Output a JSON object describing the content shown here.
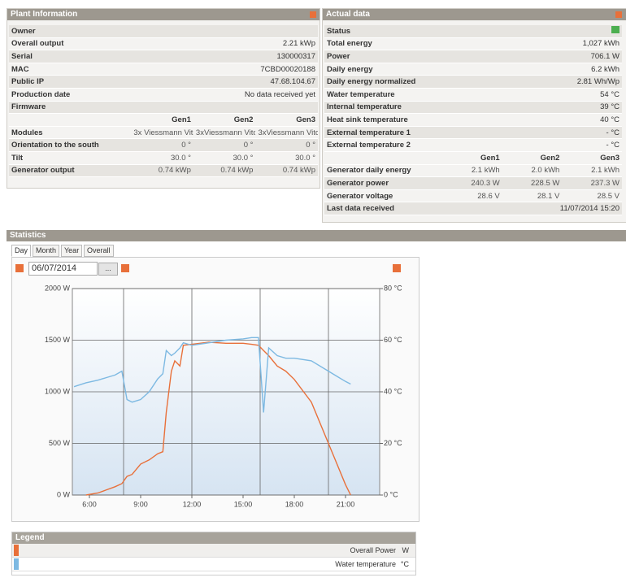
{
  "plant_info": {
    "title": "Plant Information",
    "rows": [
      [
        "Owner"
      ],
      [
        "Overall output",
        "2.21 kWp"
      ],
      [
        "Serial",
        "130000317"
      ],
      [
        "MAC",
        "7CBD00020188"
      ],
      [
        "Public IP",
        "47.68.104.67"
      ],
      [
        "Production date",
        "No data received yet"
      ],
      [
        "Firmware"
      ]
    ],
    "gen_headers": [
      "Gen1",
      "Gen2",
      "Gen3"
    ],
    "gen_rows": [
      [
        "Modules",
        "3x Viessmann Vito",
        "3xViessmann Vito",
        "3xViessmann Vito"
      ],
      [
        "Orientation to the south",
        "0 °",
        "0 °",
        "0 °"
      ],
      [
        "Tilt",
        "30.0 °",
        "30.0 °",
        "30.0 °"
      ],
      [
        "Generator output",
        "0.74 kWp",
        "0.74 kWp",
        "0.74 kWp"
      ]
    ]
  },
  "actual_data": {
    "title": "Actual data",
    "rows": [
      [
        "Status"
      ],
      [
        "Total energy",
        "1,027 kWh"
      ],
      [
        "Power",
        "706.1 W"
      ],
      [
        "Daily energy",
        "6.2 kWh"
      ],
      [
        "Daily energy normalized",
        "2.81 Wh/Wp"
      ],
      [
        "Water temperature",
        "54 °C"
      ],
      [
        "Internal temperature",
        "39 °C"
      ],
      [
        "Heat sink temperature",
        "40 °C"
      ],
      [
        "External temperature 1",
        "- °C"
      ],
      [
        "External temperature 2",
        "- °C"
      ]
    ],
    "gen_headers": [
      "Gen1",
      "Gen2",
      "Gen3"
    ],
    "gen_rows": [
      [
        "Generator daily energy",
        "2.1 kWh",
        "2.0 kWh",
        "2.1 kWh"
      ],
      [
        "Generator power",
        "240.3 W",
        "228.5 W",
        "237.3 W"
      ],
      [
        "Generator voltage",
        "28.6 V",
        "28.1 V",
        "28.5 V"
      ]
    ],
    "footer": [
      "Last data received",
      "11/07/2014 15:20"
    ]
  },
  "statistics": {
    "title": "Statistics",
    "tabs": [
      "Day",
      "Month",
      "Year",
      "Overall"
    ],
    "date": "06/07/2014",
    "date_button": "...",
    "chart_data": {
      "type": "line",
      "x": [
        5.1,
        5.8,
        6.5,
        7,
        7.5,
        7.9,
        8.2,
        8.5,
        9,
        9.5,
        10,
        10.3,
        10.5,
        10.8,
        11,
        11.3,
        11.5,
        12,
        13,
        14,
        15,
        15.5,
        15.9,
        16.2,
        16.5,
        17,
        17.5,
        18,
        19,
        20,
        20.5,
        21,
        21.3
      ],
      "series": [
        {
          "name": "Overall Power",
          "unit": "W",
          "color": "#e8703a",
          "values": [
            null,
            0,
            20,
            50,
            80,
            110,
            180,
            200,
            300,
            340,
            400,
            420,
            800,
            1200,
            1300,
            1250,
            1450,
            1460,
            1480,
            1470,
            1470,
            1460,
            1450,
            1400,
            1350,
            1250,
            1200,
            1120,
            900,
            500,
            300,
            100,
            0
          ]
        },
        {
          "name": "Water temperature",
          "unit": "°C",
          "color": "#7db9e2",
          "axis": "y2",
          "values": [
            42,
            43.5,
            44.5,
            45.5,
            46.5,
            48,
            37,
            36,
            37,
            40,
            45,
            47,
            56,
            54,
            55,
            57,
            59,
            58,
            59,
            60,
            60.5,
            61,
            61,
            32,
            57,
            54,
            53,
            53,
            52,
            48,
            46,
            44,
            43
          ]
        }
      ],
      "xlim": [
        5,
        23
      ],
      "xticks": [
        {
          "value": 6,
          "label": "6:00"
        },
        {
          "value": 9,
          "label": "9:00"
        },
        {
          "value": 12,
          "label": "12:00"
        },
        {
          "value": 15,
          "label": "15:00"
        },
        {
          "value": 18,
          "label": "18:00"
        },
        {
          "value": 21,
          "label": "21:00"
        }
      ],
      "xgrid": [
        8,
        12,
        16,
        20
      ],
      "ylim": [
        0,
        2000
      ],
      "yticks": [
        {
          "value": 0,
          "label": "0 W"
        },
        {
          "value": 500,
          "label": "500 W"
        },
        {
          "value": 1000,
          "label": "1000 W"
        },
        {
          "value": 1500,
          "label": "1500 W"
        },
        {
          "value": 2000,
          "label": "2000 W"
        }
      ],
      "y2lim": [
        0,
        80
      ],
      "y2ticks": [
        {
          "value": 0,
          "label": "0 °C"
        },
        {
          "value": 20,
          "label": "20 °C"
        },
        {
          "value": 40,
          "label": "40 °C"
        },
        {
          "value": 60,
          "label": "60 °C"
        },
        {
          "value": 80,
          "label": "80 °C"
        }
      ],
      "grid": true
    }
  },
  "legend": {
    "title": "Legend"
  }
}
